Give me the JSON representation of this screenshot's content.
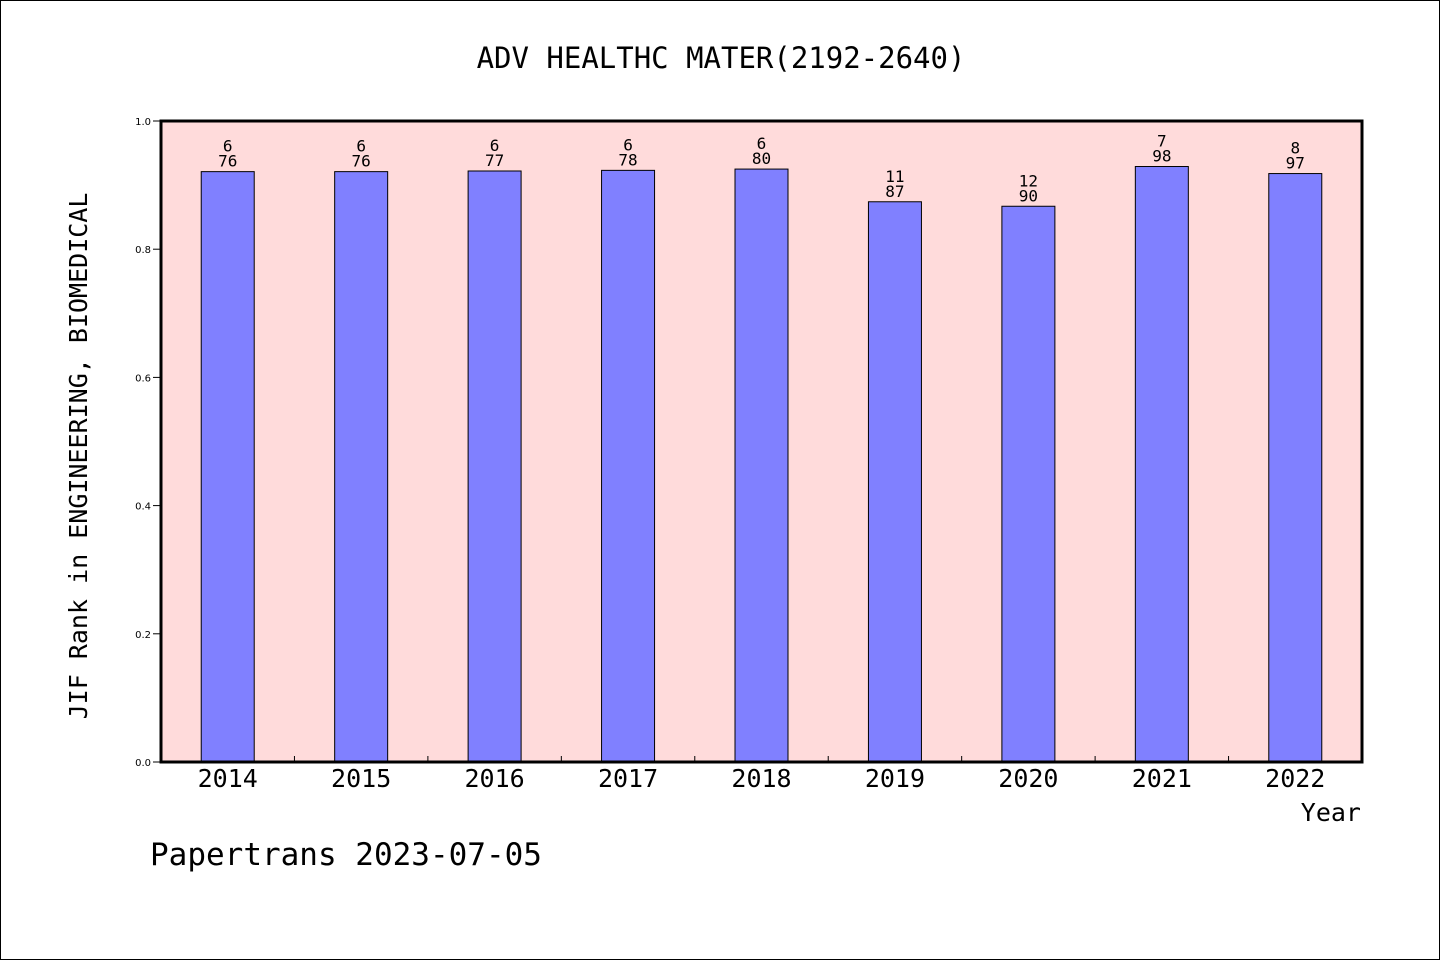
{
  "chart_data": {
    "type": "bar",
    "title": "ADV HEALTHC MATER(2192-2640)",
    "xlabel": "Year",
    "ylabel": "JIF Rank in ENGINEERING, BIOMEDICAL",
    "ylim": [
      0,
      1.0
    ],
    "yticks": [
      "0.0",
      "0.2",
      "0.4",
      "0.6",
      "0.8",
      "1.0"
    ],
    "categories": [
      "2014",
      "2015",
      "2016",
      "2017",
      "2018",
      "2019",
      "2020",
      "2021",
      "2022"
    ],
    "values": [
      0.921,
      0.921,
      0.922,
      0.923,
      0.925,
      0.874,
      0.867,
      0.929,
      0.918
    ],
    "rank": [
      "6",
      "6",
      "6",
      "6",
      "6",
      "11",
      "12",
      "7",
      "8"
    ],
    "total": [
      "76",
      "76",
      "77",
      "78",
      "80",
      "87",
      "90",
      "98",
      "97"
    ],
    "grid": false,
    "colors": {
      "bar": "#8080ff",
      "plot_bg": "#ffdbdb"
    }
  },
  "footer": "Papertrans 2023-07-05"
}
